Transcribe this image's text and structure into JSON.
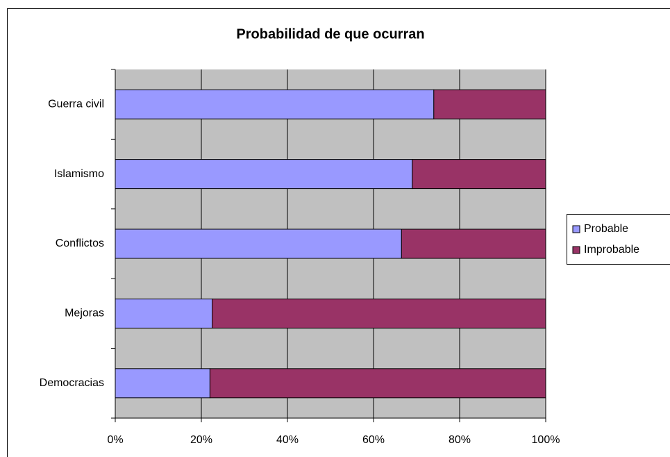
{
  "chart_data": {
    "type": "bar",
    "orientation": "horizontal",
    "stacked": "percent",
    "title": "Probabilidad de que ocurran",
    "categories": [
      "Guerra civil",
      "Islamismo",
      "Conflictos",
      "Mejoras",
      "Democracias"
    ],
    "series": [
      {
        "name": "Probable",
        "color": "#9999ff",
        "values": [
          74,
          69,
          66.5,
          22.5,
          22
        ]
      },
      {
        "name": "Improbable",
        "color": "#993366",
        "values": [
          26,
          31,
          33.5,
          77.5,
          78
        ]
      }
    ],
    "xlim": [
      0,
      100
    ],
    "xticks": [
      {
        "value": 0,
        "label": "0%"
      },
      {
        "value": 20,
        "label": "20%"
      },
      {
        "value": 40,
        "label": "40%"
      },
      {
        "value": 60,
        "label": "60%"
      },
      {
        "value": 80,
        "label": "80%"
      },
      {
        "value": 100,
        "label": "100%"
      }
    ],
    "grid": true,
    "legend": "right"
  }
}
